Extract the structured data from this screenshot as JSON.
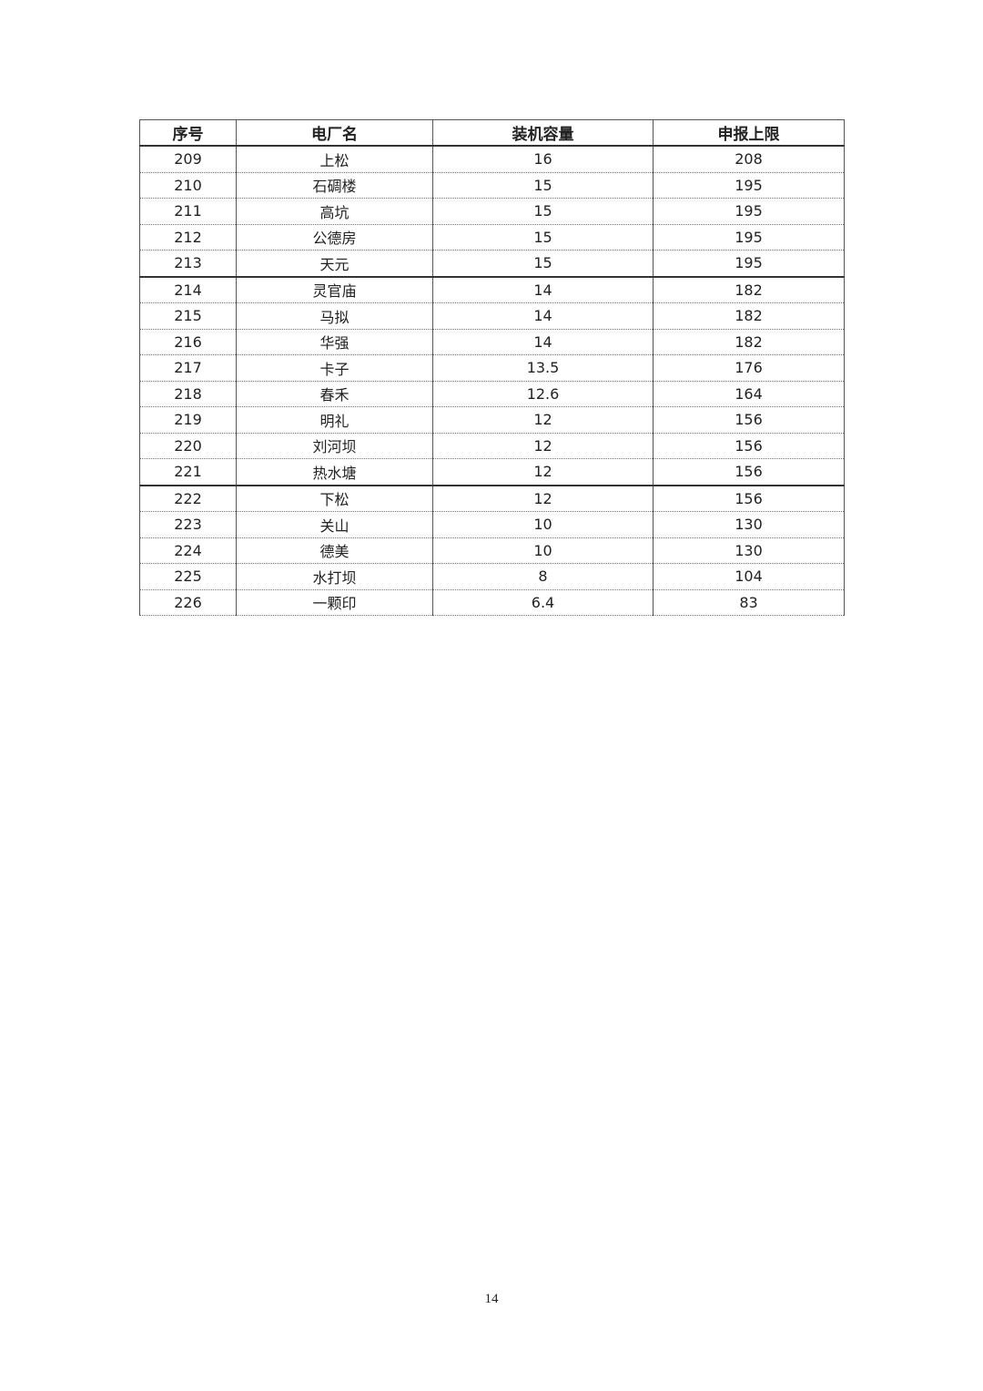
{
  "table": {
    "headers": [
      "序号",
      "电厂名",
      "装机容量",
      "申报上限"
    ],
    "rows": [
      [
        "209",
        "上松",
        "16",
        "208"
      ],
      [
        "210",
        "石碉楼",
        "15",
        "195"
      ],
      [
        "211",
        "高坑",
        "15",
        "195"
      ],
      [
        "212",
        "公德房",
        "15",
        "195"
      ],
      [
        "213",
        "天元",
        "15",
        "195"
      ],
      [
        "214",
        "灵官庙",
        "14",
        "182"
      ],
      [
        "215",
        "马拟",
        "14",
        "182"
      ],
      [
        "216",
        "华强",
        "14",
        "182"
      ],
      [
        "217",
        "卡子",
        "13.5",
        "176"
      ],
      [
        "218",
        "春禾",
        "12.6",
        "164"
      ],
      [
        "219",
        "明礼",
        "12",
        "156"
      ],
      [
        "220",
        "刘河坝",
        "12",
        "156"
      ],
      [
        "221",
        "热水塘",
        "12",
        "156"
      ],
      [
        "222",
        "下松",
        "12",
        "156"
      ],
      [
        "223",
        "关山",
        "10",
        "130"
      ],
      [
        "224",
        "德美",
        "10",
        "130"
      ],
      [
        "225",
        "水打坝",
        "8",
        "104"
      ],
      [
        "226",
        "一颗印",
        "6.4",
        "83"
      ]
    ]
  },
  "page_number": "14"
}
